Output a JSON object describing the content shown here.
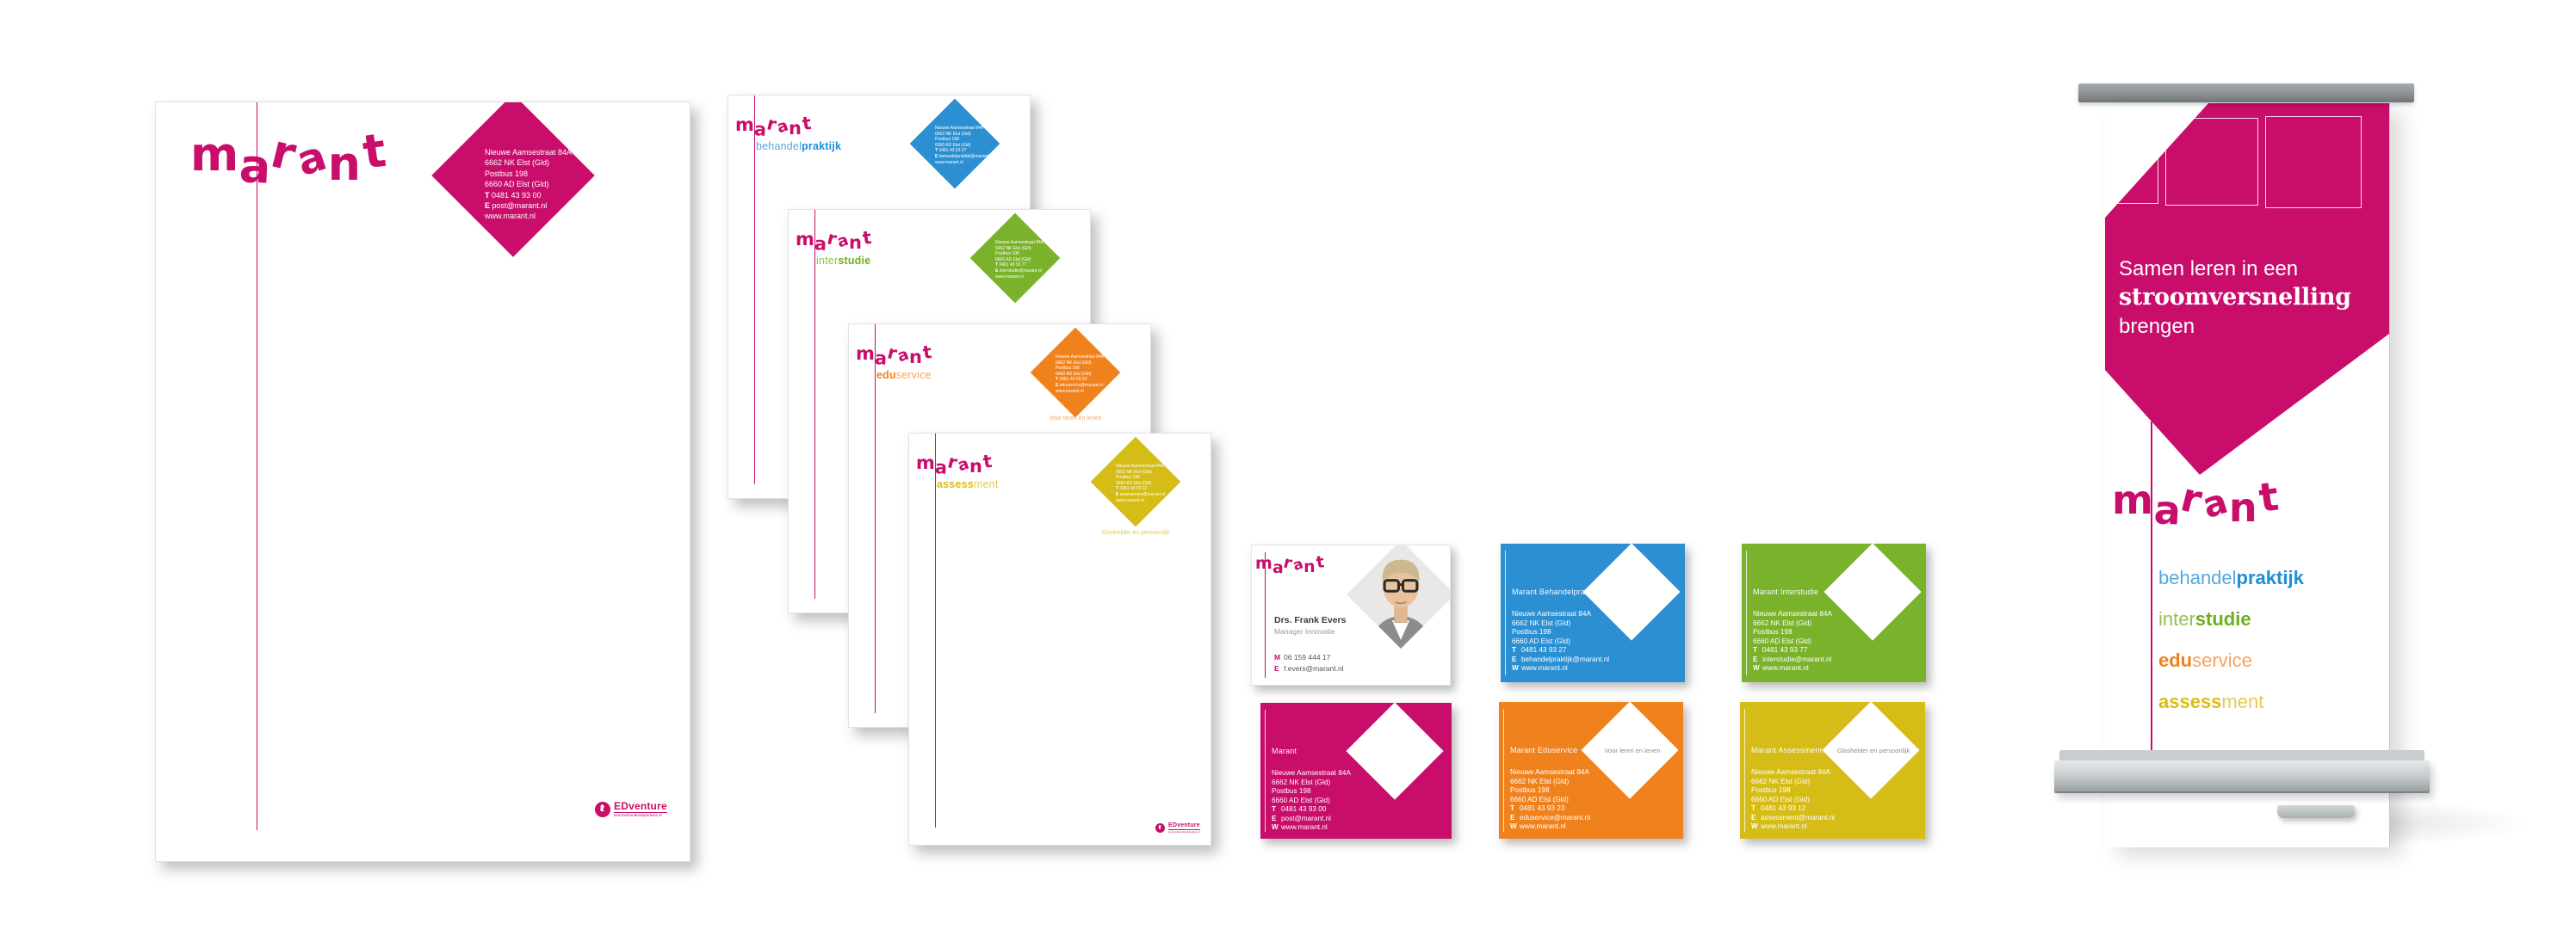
{
  "brand": {
    "logo_text": "marant",
    "colors": {
      "magenta": "#C90D6B",
      "blue": "#2B8FD2",
      "blue_light": "#55A8DE",
      "green": "#7AB22B",
      "green_light": "#93C253",
      "orange": "#F0821E",
      "orange_light": "#F5A55C",
      "yellow": "#D5BC17",
      "yellow_light": "#E0CB55",
      "tagline_gray": "#8F8F8F"
    }
  },
  "labels": {
    "phone": "T",
    "email": "E",
    "mobile": "M",
    "web": "W"
  },
  "address": {
    "line1": "Nieuwe Aamsestraat 84A",
    "line2": "6662 NK Elst (Gld)",
    "line3": "Postbus 198",
    "line4": "6660 AD Elst (Gld)",
    "website": "www.marant.nl"
  },
  "letterheads": {
    "main": {
      "phone": "0481 43 93 00",
      "email": "post@marant.nl",
      "footer_brand": "EDventure",
      "footer_sub": "keurmerkonderwijsadvies.nl"
    },
    "behandelpraktijk": {
      "part1": "behandel",
      "part2": "praktijk",
      "phone": "0481 43 93 27",
      "email": "behandelpraktijk@marant.nl"
    },
    "interstudie": {
      "part1": "inter",
      "part2": "studie",
      "phone": "0481 43 93 77",
      "email": "interstudie@marant.nl"
    },
    "eduservice": {
      "part1": "edu",
      "part2": "service",
      "phone": "0481 43 93 23",
      "email": "eduservice@marant.nl",
      "tagline": "Voor leren en lenen"
    },
    "assessment": {
      "part1": "assess",
      "part2": "ment",
      "phone": "0481 43 93 12",
      "email": "assessment@marant.nl",
      "tagline": "Glashelder en persoonlijk"
    }
  },
  "business_cards": {
    "front": {
      "name": "Drs. Frank Evers",
      "role": "Manager Innovatie",
      "mobile": "06 159 444 17",
      "email": "f.evers@marant.nl"
    },
    "behandelpraktijk": {
      "title": "Marant Behandelpraktijk",
      "phone": "0481 43 93 27",
      "email": "behandelpraktijk@marant.nl"
    },
    "interstudie": {
      "title": "Marant Interstudie",
      "phone": "0481 43 93 77",
      "email": "interstudie@marant.nl"
    },
    "marant": {
      "title": "Marant",
      "phone": "0481 43 93 00",
      "email": "post@marant.nl"
    },
    "eduservice": {
      "title": "Marant Eduservice",
      "tagline": "Voor leren en lenen",
      "phone": "0481 43 93 23",
      "email": "eduservice@marant.nl"
    },
    "assessment": {
      "title": "Marant Assessment",
      "tagline": "Glashelder en persoonlijk",
      "phone": "0481 43 93 12",
      "email": "assessment@marant.nl"
    }
  },
  "banner": {
    "headline1": "Samen leren in een",
    "headline2": "stroomversnelling",
    "headline3": "brengen",
    "sub_brands": {
      "behandelpraktijk": {
        "part1": "behandel",
        "part2": "praktijk"
      },
      "interstudie": {
        "part1": "inter",
        "part2": "studie"
      },
      "eduservice": {
        "part1": "edu",
        "part2": "service"
      },
      "assessment": {
        "part1": "assess",
        "part2": "ment"
      }
    }
  }
}
